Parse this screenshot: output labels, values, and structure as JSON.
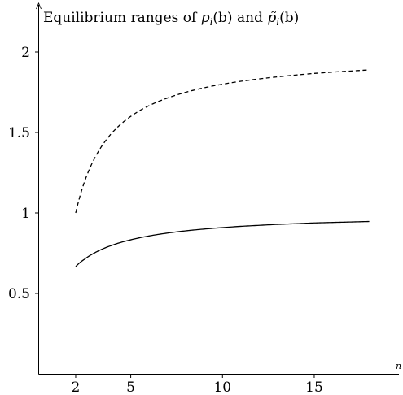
{
  "chart_data": {
    "type": "line",
    "title_parts": {
      "prefix": "Equilibrium ranges of ",
      "p1_base": "p",
      "p1_sub": "i",
      "p1_arg": "(b)",
      "middle": " and ",
      "p2_base": "p̃",
      "p2_sub": "i",
      "p2_arg": "(b)"
    },
    "xlabel": "n",
    "ylabel": "",
    "xlim": [
      0,
      20
    ],
    "ylim": [
      0,
      2.25
    ],
    "x_ticks": [
      2,
      5,
      10,
      15
    ],
    "y_ticks": [
      0.5,
      1,
      1.5,
      2
    ],
    "x_tick_labels": [
      "2",
      "5",
      "10",
      "15"
    ],
    "y_tick_labels": [
      "0.5",
      "1",
      "1.5",
      "2"
    ],
    "grid": false,
    "legend": "none",
    "series": [
      {
        "style": "solid",
        "color": "#000000",
        "x": [
          2,
          2.5,
          3,
          3.5,
          4,
          5,
          6,
          7,
          8,
          9,
          10,
          11,
          12,
          13,
          14,
          15,
          16,
          17,
          18
        ],
        "y": [
          0.667,
          0.714,
          0.75,
          0.778,
          0.8,
          0.833,
          0.857,
          0.875,
          0.889,
          0.9,
          0.909,
          0.917,
          0.923,
          0.929,
          0.933,
          0.938,
          0.941,
          0.944,
          0.947
        ]
      },
      {
        "style": "dashed",
        "color": "#000000",
        "x": [
          2,
          2.5,
          3,
          3.5,
          4,
          5,
          6,
          7,
          8,
          9,
          10,
          11,
          12,
          13,
          14,
          15,
          16,
          17,
          18
        ],
        "y": [
          1.0,
          1.2,
          1.333,
          1.429,
          1.5,
          1.6,
          1.667,
          1.714,
          1.75,
          1.778,
          1.8,
          1.818,
          1.833,
          1.846,
          1.857,
          1.867,
          1.875,
          1.882,
          1.889
        ]
      }
    ]
  }
}
